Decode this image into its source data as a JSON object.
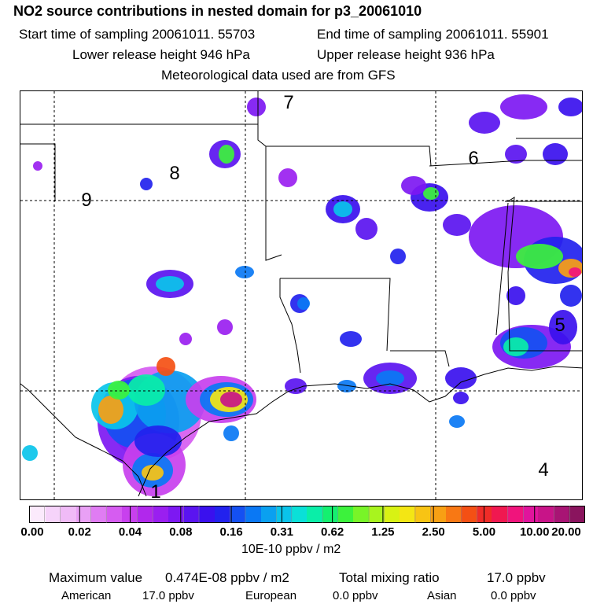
{
  "title": "NO2 source contributions in nested domain for p3_20061010",
  "start_time": "Start time of sampling 20061011. 55703",
  "end_time": "End time of sampling 20061011. 55901",
  "lower_release": "Lower release height  946 hPa",
  "upper_release": "Upper release height  936 hPa",
  "met_data": "Meteorological data used are from GFS",
  "regions": [
    "1",
    "4",
    "5",
    "6",
    "7",
    "8",
    "9"
  ],
  "colorbar": {
    "tick_labels": [
      "0.00",
      "0.02",
      "0.04",
      "0.08",
      "0.16",
      "0.31",
      "0.62",
      "1.25",
      "2.50",
      "5.00",
      "10.00",
      "20.00"
    ],
    "colors": [
      "#fbeafc",
      "#f6d3fa",
      "#f0bbf7",
      "#e9a0f5",
      "#e07cf3",
      "#d65cf1",
      "#c840ee",
      "#b128ec",
      "#9a1ff0",
      "#7d18f2",
      "#5a14f0",
      "#3a10ee",
      "#2222ee",
      "#1450f2",
      "#0a78f4",
      "#0aa0f0",
      "#0ac4ea",
      "#0ae0d8",
      "#0aeea8",
      "#14f070",
      "#3cf23c",
      "#78f428",
      "#a8f41e",
      "#d8f214",
      "#f4e614",
      "#f8c414",
      "#f8a014",
      "#f87814",
      "#f45014",
      "#f02c28",
      "#f01850",
      "#f0147c",
      "#e0149c",
      "#c81488",
      "#a81474",
      "#8a145e"
    ],
    "units": "10E-10 ppbv / m2"
  },
  "footer": {
    "max_label": "Maximum value",
    "max_value": "0.474E-08 ppbv / m2",
    "total_label": "Total mixing ratio",
    "total_value": "17.0 ppbv",
    "american_label": "American",
    "american_value": "17.0 ppbv",
    "european_label": "European",
    "european_value": "0.0 ppbv",
    "asian_label": "Asian",
    "asian_value": "0.0 ppbv"
  }
}
